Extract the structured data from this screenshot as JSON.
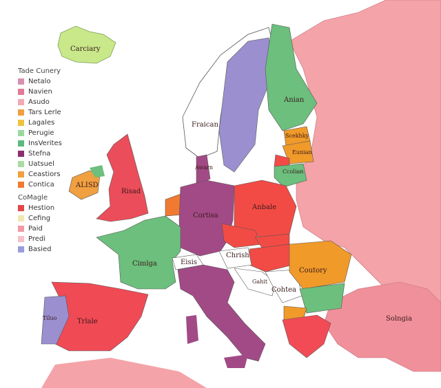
{
  "legend": {
    "title": "Tade Cunery",
    "items": [
      {
        "label": "Netalo",
        "color": "#d98fb2"
      },
      {
        "label": "Navien",
        "color": "#e07a98"
      },
      {
        "label": "Asudo",
        "color": "#f3aab5"
      },
      {
        "label": "Tars Lerle",
        "color": "#f0a040"
      },
      {
        "label": "Lagales",
        "color": "#f0c040"
      },
      {
        "label": "Perugie",
        "color": "#9ad8a0"
      },
      {
        "label": "InsVerites",
        "color": "#5dba80"
      },
      {
        "label": "Stefna",
        "color": "#8a3070"
      },
      {
        "label": "Uatsuel",
        "color": "#a8dca0"
      },
      {
        "label": "Ceastiors",
        "color": "#f0a040"
      },
      {
        "label": "Contica",
        "color": "#f07a30"
      }
    ],
    "subtitle": "CoMagle",
    "sub_items": [
      {
        "label": "Hestion",
        "color": "#e04848"
      },
      {
        "label": "Cefing",
        "color": "#f0e8b0"
      },
      {
        "label": "Paid",
        "color": "#f09aa8"
      },
      {
        "label": "Predi",
        "color": "#f6c0c8"
      },
      {
        "label": "Basied",
        "color": "#9a9ce0"
      }
    ]
  },
  "labels": {
    "iceland": "Carciary",
    "norway": "Fraican",
    "finland": "Anian",
    "estonia": "Scekhky",
    "latvia": "Eunian",
    "lithuania": "Ccolian",
    "ireland": "ALISD",
    "uk": "Risad",
    "denmark": "Awarn",
    "germany": "Cortisa",
    "poland": "Anbale",
    "france": "Cimlga",
    "switzerland": "Eisis",
    "austria": "Chrish",
    "croatia": "Gahit",
    "serbia": "Cohtea",
    "romania": "Coutory",
    "spain": "Trlale",
    "portugal": "Tiluo",
    "turkey": "Solngia"
  },
  "colors": {
    "sea": "#ffffff",
    "russia": "#f4a3a8",
    "sweden": "#9b8fd0",
    "finland": "#6cbf7d",
    "germany": "#a24a86",
    "poland": "#f24b45",
    "france": "#6cbf7d",
    "spain": "#f04a55",
    "uk": "#ec4d5a",
    "ireland": "#f0a040",
    "iceland": "#c8e88a",
    "romania": "#f09a2a",
    "turkey": "#f0909a"
  }
}
